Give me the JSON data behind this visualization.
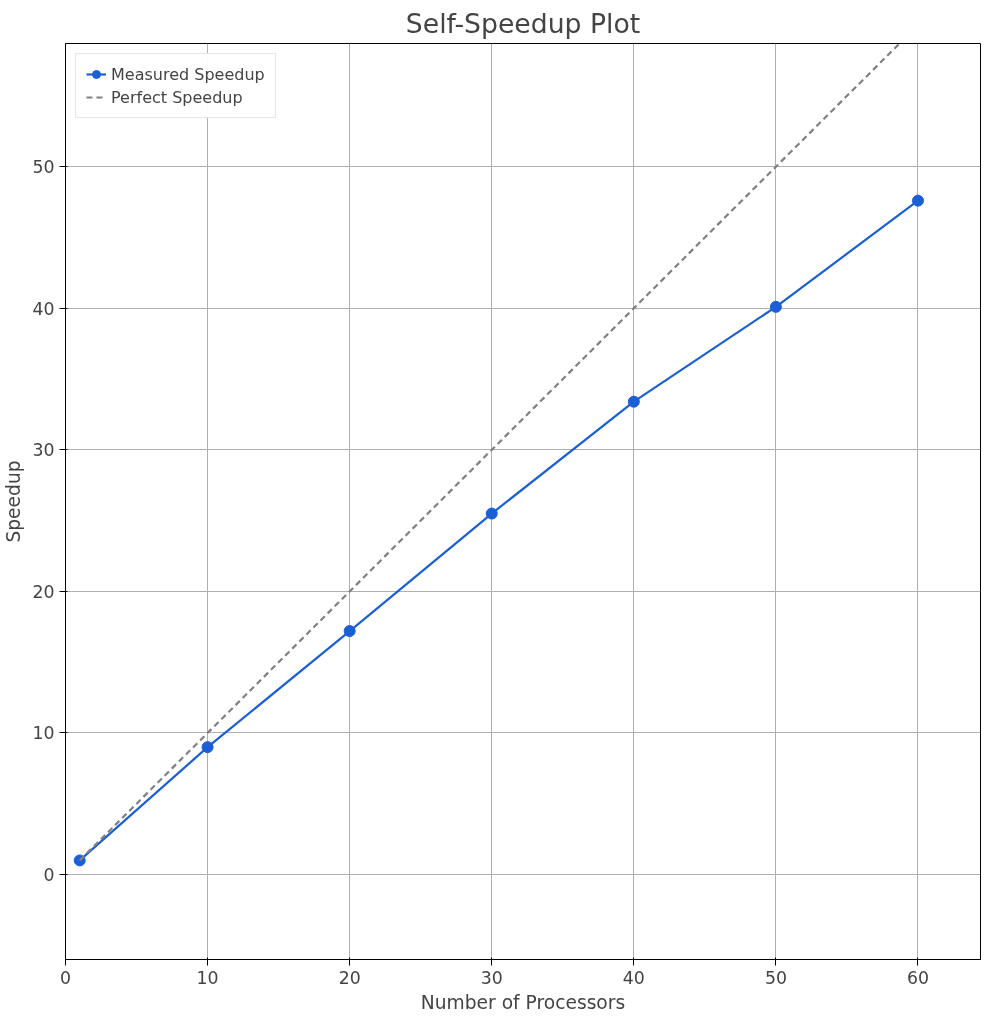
{
  "chart_data": {
    "type": "line",
    "title": "Self-Speedup Plot",
    "xlabel": "Number of Processors",
    "ylabel": "Speedup",
    "xlim": [
      0,
      64.4
    ],
    "ylim": [
      -6,
      58.7
    ],
    "xticks": [
      0,
      10,
      20,
      30,
      40,
      50,
      60
    ],
    "yticks": [
      0,
      10,
      20,
      30,
      40,
      50
    ],
    "grid": true,
    "legend": "top left",
    "series": [
      {
        "name": "Measured Speedup",
        "color": "#1a5fd6",
        "x": [
          1,
          10,
          20,
          30,
          40,
          50,
          60
        ],
        "values": [
          1,
          9,
          17.2,
          25.5,
          33.4,
          40.1,
          47.6
        ],
        "marker": "circle",
        "line_style": "solid"
      },
      {
        "name": "Perfect Speedup",
        "color": "#808080",
        "x": [
          1,
          58.7
        ],
        "values": [
          1,
          58.7
        ],
        "marker": "none",
        "line_style": "dashed"
      }
    ]
  }
}
